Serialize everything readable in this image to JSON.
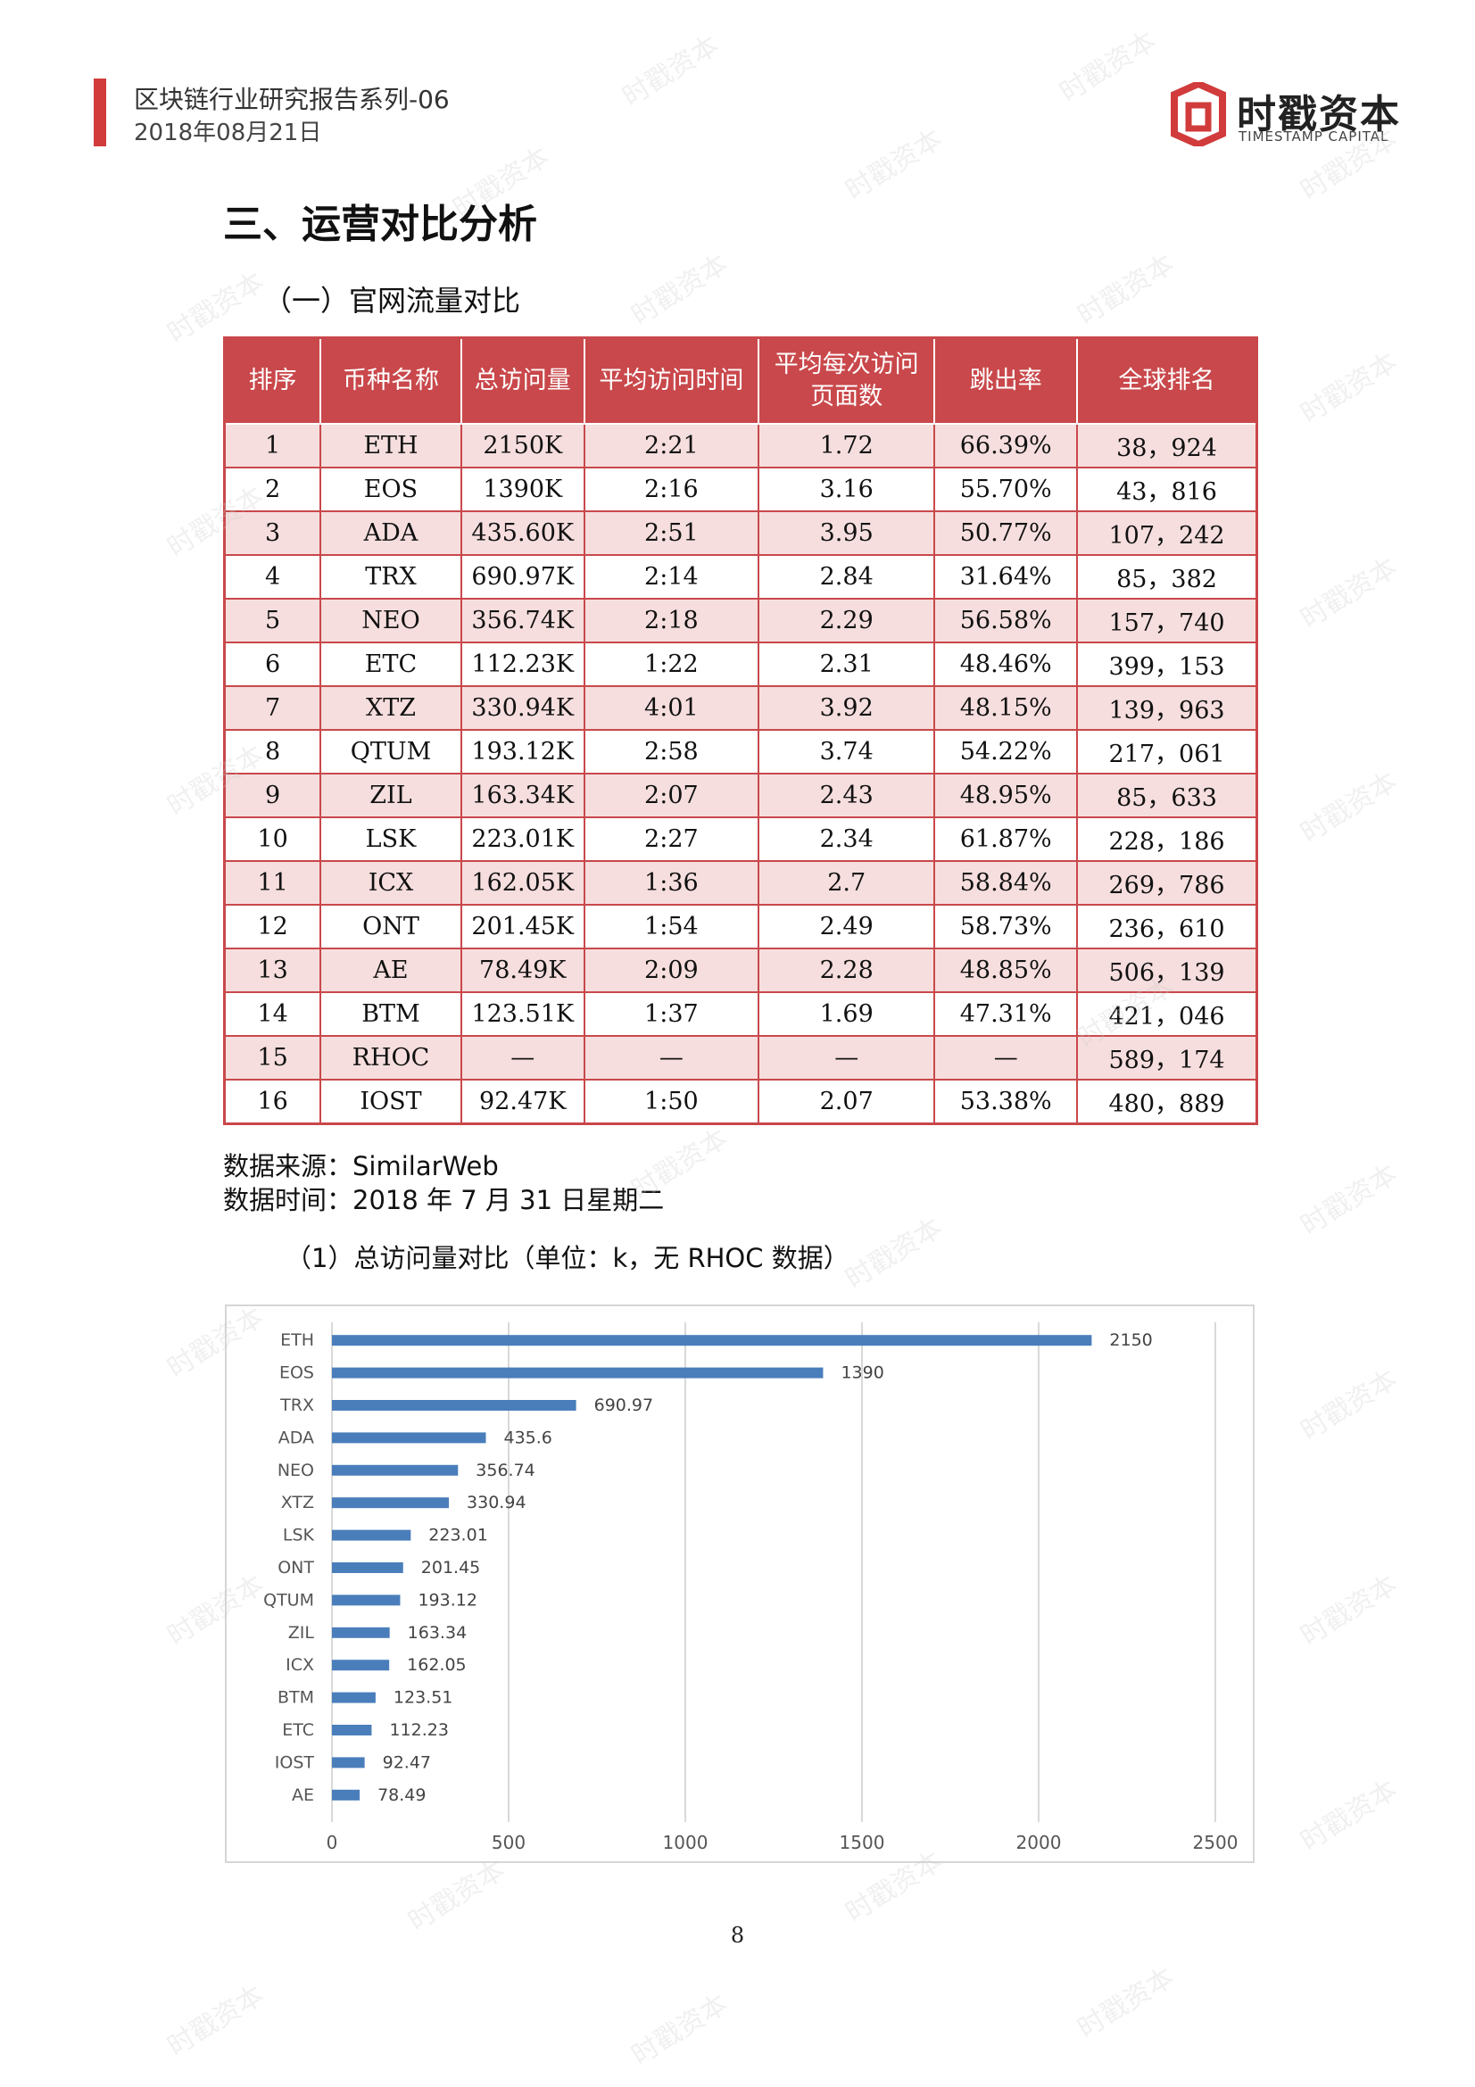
{
  "header": {
    "series": "区块链行业研究报告系列-06",
    "date": "2018年08月21日",
    "logo_cn": "时戳资本",
    "logo_en": "TIMESTAMP CAPITAL",
    "accent_color": "#d13b3b"
  },
  "section_title": "三、运营对比分析",
  "subsection_title": "（一）官网流量对比",
  "table": {
    "header_color": "#c9484b",
    "columns": [
      "排序",
      "币种名称",
      "总访问量",
      "平均访问时间",
      "平均每次访问页面数",
      "跳出率",
      "全球排名"
    ],
    "rows": [
      [
        "1",
        "ETH",
        "2150K",
        "2:21",
        "1.72",
        "66.39%",
        "38，924"
      ],
      [
        "2",
        "EOS",
        "1390K",
        "2:16",
        "3.16",
        "55.70%",
        "43，816"
      ],
      [
        "3",
        "ADA",
        "435.60K",
        "2:51",
        "3.95",
        "50.77%",
        "107，242"
      ],
      [
        "4",
        "TRX",
        "690.97K",
        "2:14",
        "2.84",
        "31.64%",
        "85，382"
      ],
      [
        "5",
        "NEO",
        "356.74K",
        "2:18",
        "2.29",
        "56.58%",
        "157，740"
      ],
      [
        "6",
        "ETC",
        "112.23K",
        "1:22",
        "2.31",
        "48.46%",
        "399，153"
      ],
      [
        "7",
        "XTZ",
        "330.94K",
        "4:01",
        "3.92",
        "48.15%",
        "139，963"
      ],
      [
        "8",
        "QTUM",
        "193.12K",
        "2:58",
        "3.74",
        "54.22%",
        "217，061"
      ],
      [
        "9",
        "ZIL",
        "163.34K",
        "2:07",
        "2.43",
        "48.95%",
        "85，633"
      ],
      [
        "10",
        "LSK",
        "223.01K",
        "2:27",
        "2.34",
        "61.87%",
        "228，186"
      ],
      [
        "11",
        "ICX",
        "162.05K",
        "1:36",
        "2.7",
        "58.84%",
        "269，786"
      ],
      [
        "12",
        "ONT",
        "201.45K",
        "1:54",
        "2.49",
        "58.73%",
        "236，610"
      ],
      [
        "13",
        "AE",
        "78.49K",
        "2:09",
        "2.28",
        "48.85%",
        "506，139"
      ],
      [
        "14",
        "BTM",
        "123.51K",
        "1:37",
        "1.69",
        "47.31%",
        "421，046"
      ],
      [
        "15",
        "RHOC",
        "—",
        "—",
        "—",
        "—",
        "589，174"
      ],
      [
        "16",
        "IOST",
        "92.47K",
        "1:50",
        "2.07",
        "53.38%",
        "480，889"
      ]
    ]
  },
  "source_line": "数据来源：SimilarWeb",
  "time_line": "数据时间：2018 年 7 月 31 日星期二",
  "chart_caption": "（1）总访问量对比（单位：k，无 RHOC 数据）",
  "chart_data": {
    "type": "bar",
    "orientation": "horizontal",
    "categories": [
      "ETH",
      "EOS",
      "TRX",
      "ADA",
      "NEO",
      "XTZ",
      "LSK",
      "ONT",
      "QTUM",
      "ZIL",
      "ICX",
      "BTM",
      "ETC",
      "IOST",
      "AE"
    ],
    "values": [
      2150,
      1390,
      690.97,
      435.6,
      356.74,
      330.94,
      223.01,
      201.45,
      193.12,
      163.34,
      162.05,
      123.51,
      112.23,
      92.47,
      78.49
    ],
    "xlim": [
      0,
      2500
    ],
    "xticks": [
      0,
      500,
      1000,
      1500,
      2000,
      2500
    ],
    "grid": true,
    "bar_color": "#4a7ebb"
  },
  "page_number": "8",
  "watermark": "时戳资本"
}
